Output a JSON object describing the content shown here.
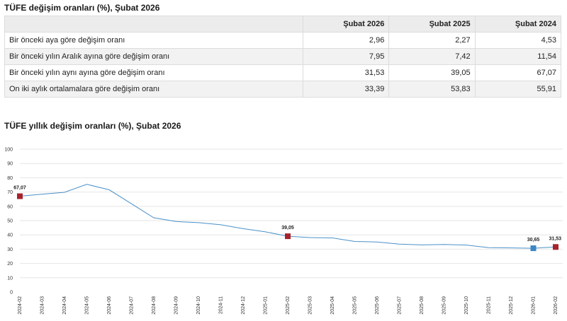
{
  "table_title": "TÜFE değişim oranları (%), Şubat 2026",
  "table": {
    "headers": [
      "",
      "Şubat 2026",
      "Şubat 2025",
      "Şubat 2024"
    ],
    "rows": [
      {
        "label": "Bir önceki aya göre değişim oranı",
        "values": [
          "2,96",
          "2,27",
          "4,53"
        ]
      },
      {
        "label": "Bir önceki yılın Aralık ayına göre değişim oranı",
        "values": [
          "7,95",
          "7,42",
          "11,54"
        ]
      },
      {
        "label": "Bir önceki yılın aynı ayına göre değişim oranı",
        "values": [
          "31,53",
          "39,05",
          "67,07"
        ]
      },
      {
        "label": "On iki aylık ortalamalara göre değişim oranı",
        "values": [
          "33,39",
          "53,83",
          "55,91"
        ]
      }
    ]
  },
  "chart_title": "TÜFE yıllık değişim oranları (%), Şubat 2026",
  "colors": {
    "line": "#4a90c8",
    "highlight_red": "#a8222b",
    "highlight_blue": "#3c86c4",
    "grid": "#e6e6e6"
  },
  "chart_data": {
    "type": "line",
    "title": "TÜFE yıllık değişim oranları (%), Şubat 2026",
    "xlabel": "",
    "ylabel": "",
    "ylim": [
      0,
      100
    ],
    "yticks": [
      0,
      10,
      20,
      30,
      40,
      50,
      60,
      70,
      80,
      90,
      100
    ],
    "categories": [
      "2024-02",
      "2024-03",
      "2024-04",
      "2024-05",
      "2024-06",
      "2024-07",
      "2024-08",
      "2024-09",
      "2024-10",
      "2024-11",
      "2024-12",
      "2025-01",
      "2025-02",
      "2025-03",
      "2025-04",
      "2025-05",
      "2025-06",
      "2025-07",
      "2025-08",
      "2025-09",
      "2025-10",
      "2025-11",
      "2025-12",
      "2026-01",
      "2026-02"
    ],
    "series": [
      {
        "name": "TÜFE yıllık değişim oranı",
        "values": [
          67.07,
          68.5,
          69.8,
          75.4,
          71.6,
          61.8,
          51.97,
          49.38,
          48.58,
          47.09,
          44.38,
          42.12,
          39.05,
          38.1,
          37.86,
          35.41,
          35.05,
          33.52,
          32.95,
          33.29,
          32.87,
          31.07,
          30.89,
          30.65,
          31.53
        ]
      }
    ],
    "markers": [
      {
        "index": 0,
        "label": "67,07",
        "color": "red"
      },
      {
        "index": 12,
        "label": "39,05",
        "color": "red"
      },
      {
        "index": 23,
        "label": "30,65",
        "color": "blue"
      },
      {
        "index": 24,
        "label": "31,53",
        "color": "red"
      }
    ]
  }
}
